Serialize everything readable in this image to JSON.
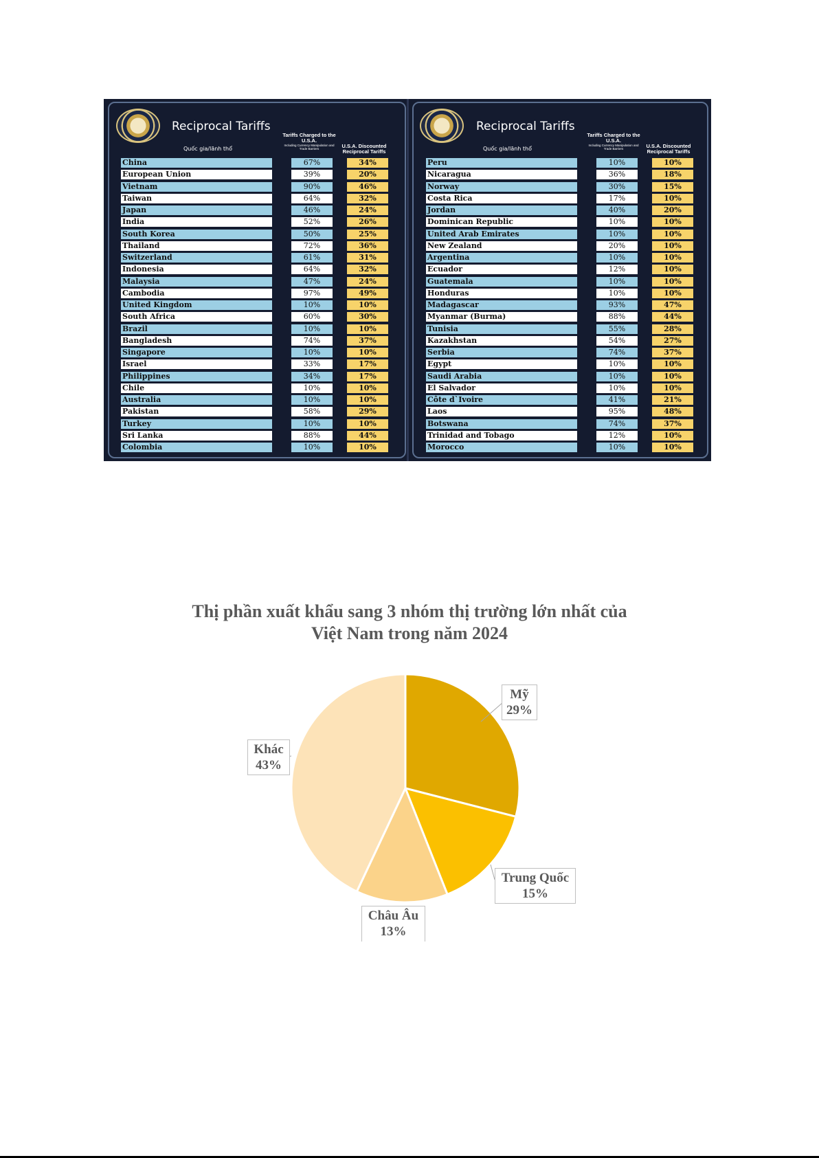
{
  "tariff_table": {
    "title": "Reciprocal Tariffs",
    "country_header": "Quốc gia/lãnh thổ",
    "charged_header": "Tariffs Charged to the U.S.A.",
    "charged_subheader": "Including Currency Manipulation and Trade Barriers",
    "discount_header": "U.S.A. Discounted Reciprocal Tariffs",
    "left_rows": [
      {
        "country": "China",
        "charged": "67%",
        "discounted": "34%"
      },
      {
        "country": "European Union",
        "charged": "39%",
        "discounted": "20%"
      },
      {
        "country": "Vietnam",
        "charged": "90%",
        "discounted": "46%"
      },
      {
        "country": "Taiwan",
        "charged": "64%",
        "discounted": "32%"
      },
      {
        "country": "Japan",
        "charged": "46%",
        "discounted": "24%"
      },
      {
        "country": "India",
        "charged": "52%",
        "discounted": "26%"
      },
      {
        "country": "South Korea",
        "charged": "50%",
        "discounted": "25%"
      },
      {
        "country": "Thailand",
        "charged": "72%",
        "discounted": "36%"
      },
      {
        "country": "Switzerland",
        "charged": "61%",
        "discounted": "31%"
      },
      {
        "country": "Indonesia",
        "charged": "64%",
        "discounted": "32%"
      },
      {
        "country": "Malaysia",
        "charged": "47%",
        "discounted": "24%"
      },
      {
        "country": "Cambodia",
        "charged": "97%",
        "discounted": "49%"
      },
      {
        "country": "United Kingdom",
        "charged": "10%",
        "discounted": "10%"
      },
      {
        "country": "South Africa",
        "charged": "60%",
        "discounted": "30%"
      },
      {
        "country": "Brazil",
        "charged": "10%",
        "discounted": "10%"
      },
      {
        "country": "Bangladesh",
        "charged": "74%",
        "discounted": "37%"
      },
      {
        "country": "Singapore",
        "charged": "10%",
        "discounted": "10%"
      },
      {
        "country": "Israel",
        "charged": "33%",
        "discounted": "17%"
      },
      {
        "country": "Philippines",
        "charged": "34%",
        "discounted": "17%"
      },
      {
        "country": "Chile",
        "charged": "10%",
        "discounted": "10%"
      },
      {
        "country": "Australia",
        "charged": "10%",
        "discounted": "10%"
      },
      {
        "country": "Pakistan",
        "charged": "58%",
        "discounted": "29%"
      },
      {
        "country": "Turkey",
        "charged": "10%",
        "discounted": "10%"
      },
      {
        "country": "Sri Lanka",
        "charged": "88%",
        "discounted": "44%"
      },
      {
        "country": "Colombia",
        "charged": "10%",
        "discounted": "10%"
      }
    ],
    "right_rows": [
      {
        "country": "Peru",
        "charged": "10%",
        "discounted": "10%"
      },
      {
        "country": "Nicaragua",
        "charged": "36%",
        "discounted": "18%"
      },
      {
        "country": "Norway",
        "charged": "30%",
        "discounted": "15%"
      },
      {
        "country": "Costa Rica",
        "charged": "17%",
        "discounted": "10%"
      },
      {
        "country": "Jordan",
        "charged": "40%",
        "discounted": "20%"
      },
      {
        "country": "Dominican Republic",
        "charged": "10%",
        "discounted": "10%"
      },
      {
        "country": "United Arab Emirates",
        "charged": "10%",
        "discounted": "10%"
      },
      {
        "country": "New Zealand",
        "charged": "20%",
        "discounted": "10%"
      },
      {
        "country": "Argentina",
        "charged": "10%",
        "discounted": "10%"
      },
      {
        "country": "Ecuador",
        "charged": "12%",
        "discounted": "10%"
      },
      {
        "country": "Guatemala",
        "charged": "10%",
        "discounted": "10%"
      },
      {
        "country": "Honduras",
        "charged": "10%",
        "discounted": "10%"
      },
      {
        "country": "Madagascar",
        "charged": "93%",
        "discounted": "47%"
      },
      {
        "country": "Myanmar (Burma)",
        "charged": "88%",
        "discounted": "44%"
      },
      {
        "country": "Tunisia",
        "charged": "55%",
        "discounted": "28%"
      },
      {
        "country": "Kazakhstan",
        "charged": "54%",
        "discounted": "27%"
      },
      {
        "country": "Serbia",
        "charged": "74%",
        "discounted": "37%"
      },
      {
        "country": "Egypt",
        "charged": "10%",
        "discounted": "10%"
      },
      {
        "country": "Saudi Arabia",
        "charged": "10%",
        "discounted": "10%"
      },
      {
        "country": "El Salvador",
        "charged": "10%",
        "discounted": "10%"
      },
      {
        "country": "Côte d`Ivoire",
        "charged": "41%",
        "discounted": "21%"
      },
      {
        "country": "Laos",
        "charged": "95%",
        "discounted": "48%"
      },
      {
        "country": "Botswana",
        "charged": "74%",
        "discounted": "37%"
      },
      {
        "country": "Trinidad and Tobago",
        "charged": "12%",
        "discounted": "10%"
      },
      {
        "country": "Morocco",
        "charged": "10%",
        "discounted": "10%"
      }
    ],
    "colors": {
      "background": "#141b2f",
      "row_blue": "#9ccfe4",
      "row_white": "#ffffff",
      "discount": "#f7d36a"
    }
  },
  "chart_data": {
    "type": "pie",
    "title": "Thị phần xuất khẩu sang 3 nhóm thị trường lớn nhất của Việt Nam trong năm 2024",
    "title_lines": [
      "Thị phần xuất khẩu sang 3 nhóm thị trường lớn nhất của",
      "Việt Nam trong năm 2024"
    ],
    "slices": [
      {
        "label": "Mỹ",
        "value": 29,
        "value_label": "29%",
        "color": "#e0a800"
      },
      {
        "label": "Trung Quốc",
        "value": 15,
        "value_label": "15%",
        "color": "#fbc000"
      },
      {
        "label": "Châu Âu",
        "value": 13,
        "value_label": "13%",
        "color": "#fbd38a"
      },
      {
        "label": "Khác",
        "value": 43,
        "value_label": "43%",
        "color": "#fde3b8"
      }
    ],
    "start_angle_deg": 0,
    "direction": "clockwise",
    "legend": "none"
  }
}
